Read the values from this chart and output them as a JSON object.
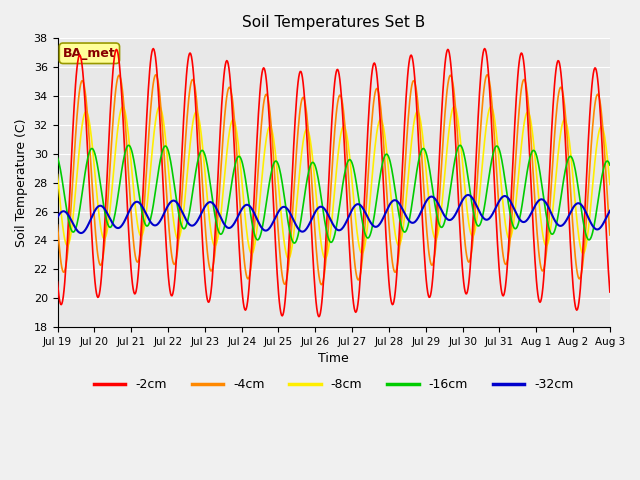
{
  "title": "Soil Temperatures Set B",
  "xlabel": "Time",
  "ylabel": "Soil Temperature (C)",
  "ylim": [
    18,
    38
  ],
  "yticks": [
    18,
    20,
    22,
    24,
    26,
    28,
    30,
    32,
    34,
    36,
    38
  ],
  "xtick_labels": [
    "Jul 19",
    "Jul 20",
    "Jul 21",
    "Jul 22",
    "Jul 23",
    "Jul 24",
    "Jul 25",
    "Jul 26",
    "Jul 27",
    "Jul 28",
    "Jul 29",
    "Jul 30",
    "Jul 31",
    "Aug 1",
    "Aug 2",
    "Aug 3"
  ],
  "series": {
    "-2cm": {
      "color": "#ff0000",
      "lw": 1.2,
      "zorder": 5
    },
    "-4cm": {
      "color": "#ff8800",
      "lw": 1.2,
      "zorder": 4
    },
    "-8cm": {
      "color": "#ffee00",
      "lw": 1.2,
      "zorder": 3
    },
    "-16cm": {
      "color": "#00cc00",
      "lw": 1.2,
      "zorder": 6
    },
    "-32cm": {
      "color": "#0000cc",
      "lw": 1.5,
      "zorder": 7
    }
  },
  "legend_order": [
    "-2cm",
    "-4cm",
    "-8cm",
    "-16cm",
    "-32cm"
  ],
  "background_color": "#e8e8e8",
  "fig_background_color": "#f0f0f0",
  "annotation_text": "BA_met",
  "annotation_box_facecolor": "#ffff99",
  "annotation_box_edgecolor": "#999900",
  "annotation_text_color": "#880000"
}
